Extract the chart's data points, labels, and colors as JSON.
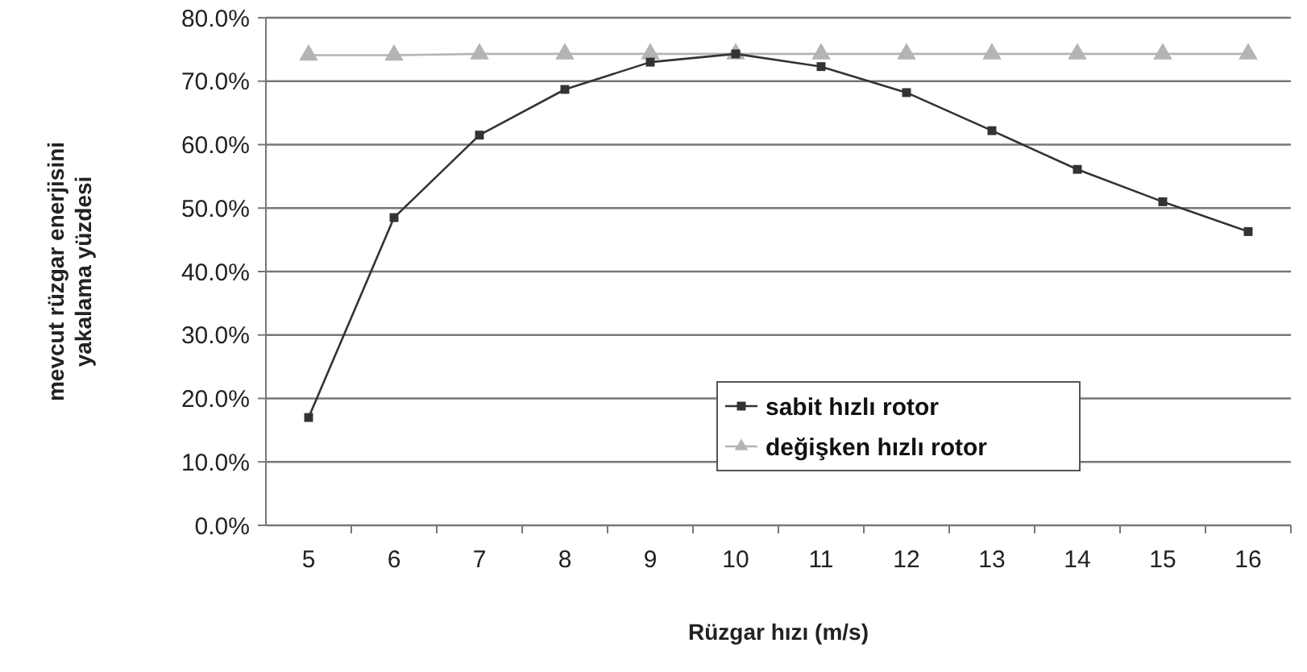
{
  "chart_data": {
    "type": "line",
    "xlabel": "Rüzgar hızı  (m/s)",
    "ylabel": "mevcut rüzgar enerjisini\nyakalama yüzdesi",
    "categories": [
      "5",
      "6",
      "7",
      "8",
      "9",
      "10",
      "11",
      "12",
      "13",
      "14",
      "15",
      "16"
    ],
    "series": [
      {
        "name": "sabit hızlı rotor",
        "color": "#333333",
        "marker": "square",
        "values": [
          17,
          48.5,
          61.5,
          68.7,
          73,
          74.3,
          72.3,
          68.2,
          62.2,
          56.1,
          51,
          46.3
        ]
      },
      {
        "name": "değişken hızlı rotor",
        "color": "#b4b4b4",
        "marker": "triangle",
        "values": [
          74.1,
          74.1,
          74.3,
          74.3,
          74.3,
          74.3,
          74.3,
          74.3,
          74.3,
          74.3,
          74.3,
          74.3
        ]
      }
    ],
    "ylim": [
      0,
      80
    ],
    "yticks": [
      {
        "value": 0,
        "label": "0.0%"
      },
      {
        "value": 10,
        "label": "10.0%"
      },
      {
        "value": 20,
        "label": "20.0%"
      },
      {
        "value": 30,
        "label": "30.0%"
      },
      {
        "value": 40,
        "label": "40.0%"
      },
      {
        "value": 50,
        "label": "50.0%"
      },
      {
        "value": 60,
        "label": "60.0%"
      },
      {
        "value": 70,
        "label": "70.0%"
      },
      {
        "value": 80,
        "label": "80.0%"
      }
    ],
    "grid": "y",
    "legend": "bottom right"
  }
}
